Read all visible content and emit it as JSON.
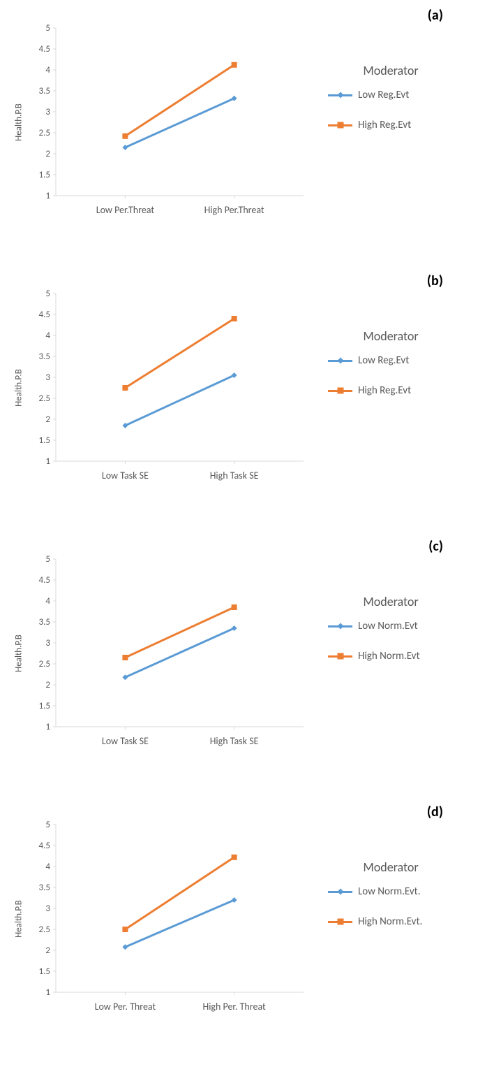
{
  "panels": [
    {
      "label": "(a)",
      "ylabel": "Health.P.B",
      "x_categories": [
        "Low Per.Threat",
        "High Per.Threat"
      ],
      "ylim": [
        1,
        5
      ],
      "ytick_step": 0.5,
      "legend_title": "Moderator",
      "series": [
        {
          "name": "Low Reg.Evt",
          "color": "#5b9bd5",
          "marker": "diamond",
          "values": [
            2.15,
            3.32
          ]
        },
        {
          "name": "High Reg.Evt",
          "color": "#ed7d31",
          "marker": "square",
          "values": [
            2.42,
            4.12
          ]
        }
      ]
    },
    {
      "label": "(b)",
      "ylabel": "Health.P.B",
      "x_categories": [
        "Low Task SE",
        "High Task SE"
      ],
      "ylim": [
        1,
        5
      ],
      "ytick_step": 0.5,
      "legend_title": "Moderator",
      "series": [
        {
          "name": "Low Reg.Evt",
          "color": "#5b9bd5",
          "marker": "diamond",
          "values": [
            1.85,
            3.05
          ]
        },
        {
          "name": "High Reg.Evt",
          "color": "#ed7d31",
          "marker": "square",
          "values": [
            2.75,
            4.4
          ]
        }
      ]
    },
    {
      "label": "(c)",
      "ylabel": "Health.P.B",
      "x_categories": [
        "Low Task SE",
        "High Task SE"
      ],
      "ylim": [
        1,
        5
      ],
      "ytick_step": 0.5,
      "legend_title": "Moderator",
      "series": [
        {
          "name": "Low Norm.Evt",
          "color": "#5b9bd5",
          "marker": "diamond",
          "values": [
            2.18,
            3.35
          ]
        },
        {
          "name": "High Norm.Evt",
          "color": "#ed7d31",
          "marker": "square",
          "values": [
            2.65,
            3.85
          ]
        }
      ]
    },
    {
      "label": "(d)",
      "ylabel": "Health.P.B",
      "x_categories": [
        "Low Per. Threat",
        "High Per. Threat"
      ],
      "ylim": [
        1,
        5
      ],
      "ytick_step": 0.5,
      "legend_title": "Moderator",
      "series": [
        {
          "name": "Low Norm.Evt.",
          "color": "#5b9bd5",
          "marker": "diamond",
          "values": [
            2.08,
            3.2
          ]
        },
        {
          "name": "High Norm.Evt.",
          "color": "#ed7d31",
          "marker": "square",
          "values": [
            2.5,
            4.22
          ]
        }
      ]
    }
  ],
  "axis_color": "#d9d9d9",
  "tick_label_color": "#595959",
  "line_width": 3,
  "marker_size": 8
}
